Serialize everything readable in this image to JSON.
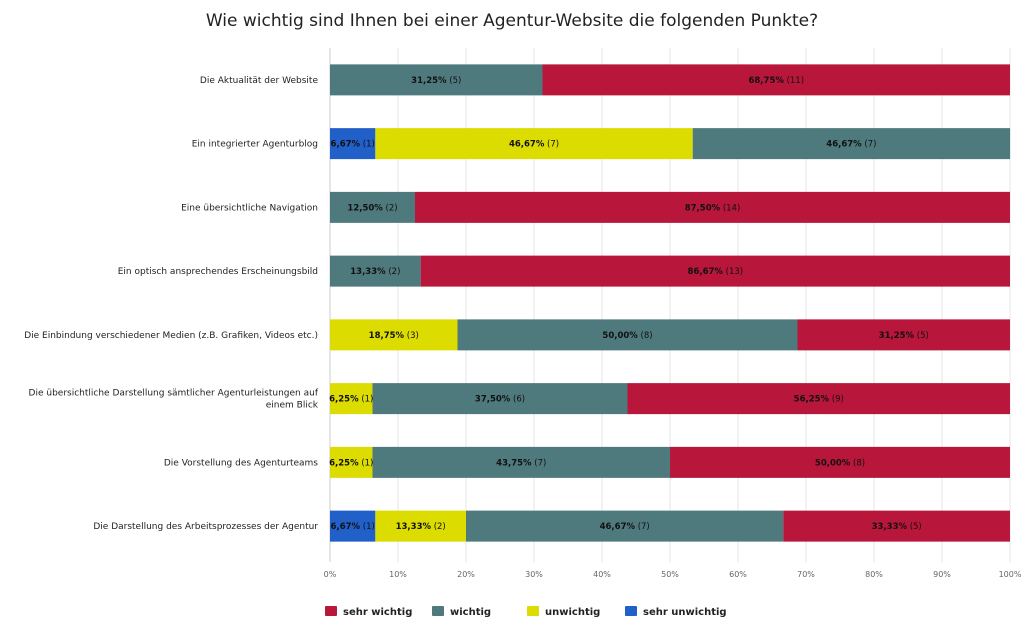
{
  "chart_data": {
    "type": "bar",
    "orientation": "horizontal",
    "stacked": true,
    "stack_mode": "percent",
    "title": "Wie wichtig sind Ihnen bei einer Agentur-Website die folgenden Punkte?",
    "xlim": [
      0,
      100
    ],
    "x_ticks": [
      "0%",
      "10%",
      "20%",
      "30%",
      "40%",
      "50%",
      "60%",
      "70%",
      "80%",
      "90%",
      "100%"
    ],
    "grid": true,
    "legend_position": "bottom",
    "categories": [
      [
        "Die Aktualität der Website"
      ],
      [
        "Ein integrierter Agenturblog"
      ],
      [
        "Eine übersichtliche Navigation"
      ],
      [
        "Ein optisch ansprechendes Erscheinungsbild"
      ],
      [
        "Die Einbindung verschiedener Medien (z.B. Grafiken, Videos etc.)"
      ],
      [
        "Die übersichtliche Darstellung sämtlicher Agenturleistungen auf",
        "einem Blick"
      ],
      [
        "Die Vorstellung des Agenturteams"
      ],
      [
        "Die Darstellung des Arbeitsprozesses der Agentur"
      ]
    ],
    "series": [
      {
        "name": "sehr unwichtig",
        "color": "#2060c8",
        "values": [
          0,
          6.67,
          0,
          0,
          0,
          0,
          0,
          6.67
        ],
        "counts": [
          0,
          1,
          0,
          0,
          0,
          0,
          0,
          1
        ],
        "labels": [
          "",
          "6,67%",
          "",
          "",
          "",
          "",
          "",
          "6,67%"
        ]
      },
      {
        "name": "unwichtig",
        "color": "#dcdc00",
        "values": [
          0,
          46.67,
          0,
          0,
          18.75,
          6.25,
          6.25,
          13.33
        ],
        "counts": [
          0,
          7,
          0,
          0,
          3,
          1,
          1,
          2
        ],
        "labels": [
          "",
          "46,67%",
          "",
          "",
          "18,75%",
          "6,25%",
          "6,25%",
          "13,33%"
        ]
      },
      {
        "name": "wichtig",
        "color": "#4f7a7d",
        "values": [
          31.25,
          46.67,
          12.5,
          13.33,
          50.0,
          37.5,
          43.75,
          46.67
        ],
        "counts": [
          5,
          7,
          2,
          2,
          8,
          6,
          7,
          7
        ],
        "labels": [
          "31,25%",
          "46,67%",
          "12,50%",
          "13,33%",
          "50,00%",
          "37,50%",
          "43,75%",
          "46,67%"
        ]
      },
      {
        "name": "sehr wichtig",
        "color": "#b8163a",
        "values": [
          68.75,
          0,
          87.5,
          86.67,
          31.25,
          56.25,
          50.0,
          33.33
        ],
        "counts": [
          11,
          0,
          14,
          13,
          5,
          9,
          8,
          5
        ],
        "labels": [
          "68,75%",
          "",
          "87,50%",
          "86,67%",
          "31,25%",
          "56,25%",
          "50,00%",
          "33,33%"
        ]
      }
    ],
    "legend": [
      {
        "name": "sehr wichtig",
        "color": "#b8163a"
      },
      {
        "name": "wichtig",
        "color": "#4f7a7d"
      },
      {
        "name": "unwichtig",
        "color": "#dcdc00"
      },
      {
        "name": "sehr unwichtig",
        "color": "#2060c8"
      }
    ]
  }
}
